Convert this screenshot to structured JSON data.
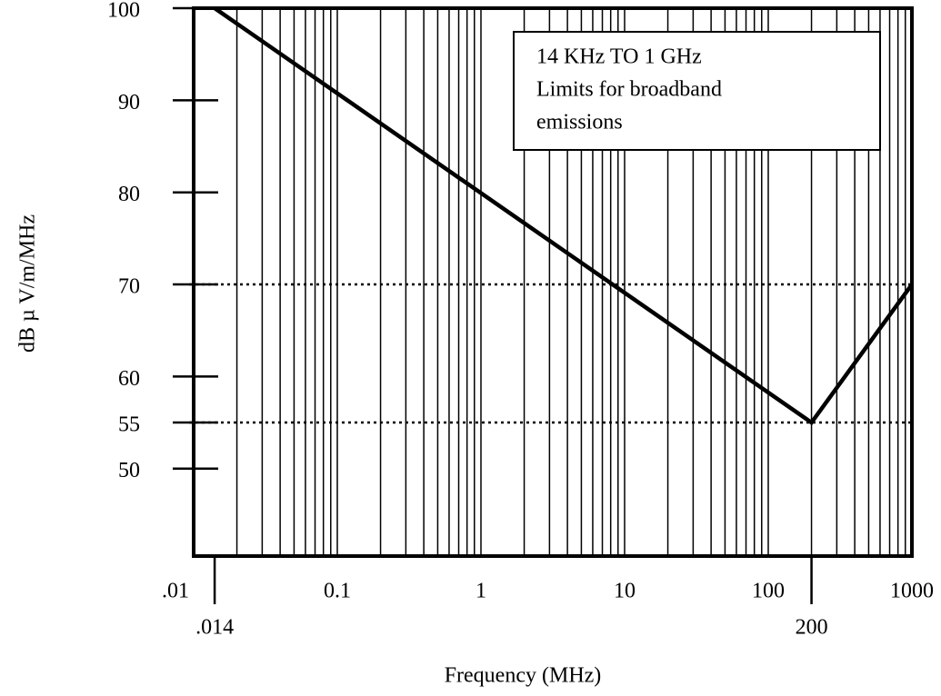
{
  "chart_data": {
    "type": "line",
    "xscale": "log",
    "x": [
      0.014,
      200,
      1000
    ],
    "series": [
      {
        "color": "#000000",
        "values": [
          100,
          55,
          70
        ]
      }
    ],
    "xlim": [
      0.01,
      1000
    ],
    "ylim": [
      40.5,
      100
    ],
    "xticks": [
      {
        "value": 0.01,
        "label": ".01"
      },
      {
        "value": 0.1,
        "label": "0.1"
      },
      1,
      10,
      100,
      1000
    ],
    "xmarks": [
      {
        "value": 0.014,
        "label": ".014"
      },
      200
    ],
    "yticks": [
      50,
      55,
      60,
      70,
      80,
      90,
      100
    ],
    "ref_lines": [
      70,
      55
    ],
    "grid": true,
    "xlabel": "Frequency (MHz)",
    "ylabel": "dB µ V/m/MHz",
    "annotation": [
      "14 KHz TO 1 GHz",
      "Limits for broadband",
      "emissions"
    ]
  }
}
